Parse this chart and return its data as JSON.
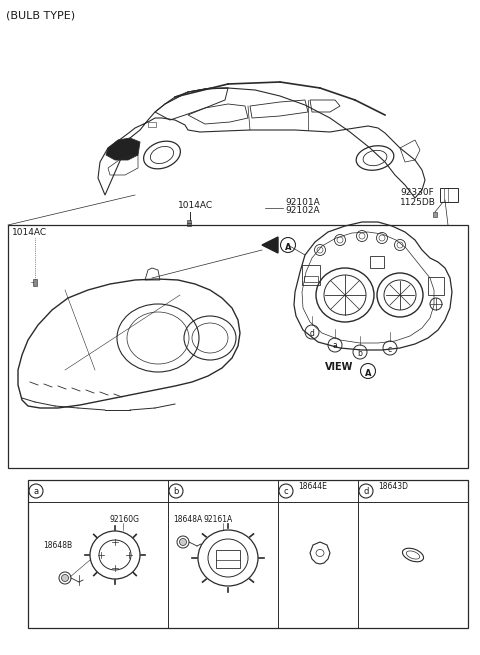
{
  "title": "(BULB TYPE)",
  "bg_color": "#ffffff",
  "line_color": "#2a2a2a",
  "text_color": "#1a1a1a",
  "fs_title": 8,
  "fs_label": 6.5,
  "fs_small": 5.5,
  "figsize": [
    4.8,
    6.55
  ],
  "dpi": 100,
  "parts": {
    "1014AC_top": "1014AC",
    "92101A": "92101A",
    "92102A": "92102A",
    "92330F": "92330F",
    "1125DB": "1125DB",
    "1014AC_box": "1014AC",
    "view_A": "VIEW",
    "18644E": "18644E",
    "18643D": "18643D",
    "92160G": "92160G",
    "18648B": "18648B",
    "18648A": "18648A",
    "92161A": "92161A"
  }
}
